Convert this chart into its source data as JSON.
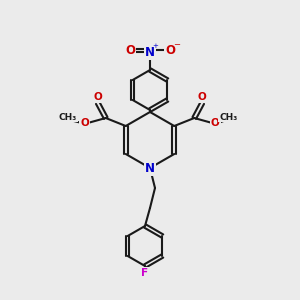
{
  "bg_color": "#ebebeb",
  "bond_color": "#1a1a1a",
  "bond_lw": 1.5,
  "atom_colors": {
    "N": "#0000cc",
    "O": "#cc0000",
    "F": "#cc00cc",
    "C": "#1a1a1a"
  },
  "font_size": 7.5,
  "font_size_small": 6.5
}
